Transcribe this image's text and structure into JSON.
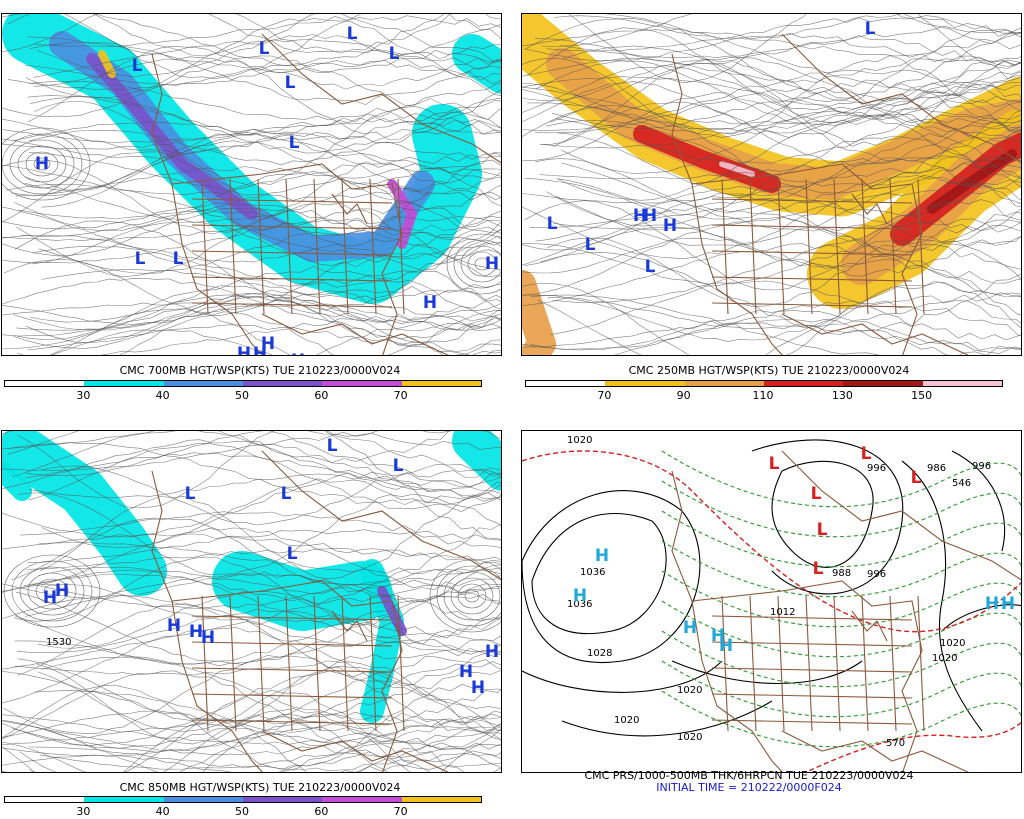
{
  "panels": {
    "p700": {
      "title": "CMC 700MB HGT/WSP(KTS) TUE 210223/0000V024",
      "legend_values": [
        "30",
        "40",
        "50",
        "60",
        "70"
      ],
      "legend_colors": [
        "#ffffff",
        "#00e5e5",
        "#4a90e2",
        "#7b52cc",
        "#c44cd8",
        "#f2c21b"
      ],
      "highs": [
        "H",
        "H",
        "H",
        "H",
        "H",
        "H",
        "H"
      ],
      "lows": [
        "L",
        "L",
        "L",
        "L",
        "L",
        "L",
        "L",
        "L"
      ]
    },
    "p250": {
      "title": "CMC 250MB HGT/WSP(KTS) TUE 210223/0000V024",
      "legend_values": [
        "70",
        "90",
        "110",
        "130",
        "150"
      ],
      "legend_colors": [
        "#ffffff",
        "#f2c21b",
        "#e8a04a",
        "#d42020",
        "#a01818",
        "#f4c2d4"
      ],
      "highs": [
        "H",
        "H",
        "H"
      ],
      "lows": [
        "L",
        "L",
        "L",
        "L"
      ]
    },
    "p850": {
      "title": "CMC 850MB HGT/WSP(KTS) TUE 210223/0000V024",
      "legend_values": [
        "30",
        "40",
        "50",
        "60",
        "70"
      ],
      "legend_colors": [
        "#ffffff",
        "#00e5e5",
        "#4a90e2",
        "#7b52cc",
        "#c44cd8",
        "#f2c21b"
      ],
      "highs": [
        "H",
        "H",
        "H",
        "H",
        "H",
        "H",
        "H",
        "H"
      ],
      "lows": [
        "L",
        "L",
        "L",
        "L",
        "L"
      ],
      "isobar_label": "1530"
    },
    "prs": {
      "title": "CMC PRS/1000-500MB THK/6HRPCN TUE 210223/0000V024",
      "subtitle": "INITIAL TIME = 210222/0000F024",
      "highs": [
        "H",
        "H",
        "H",
        "H",
        "H",
        "H",
        "H"
      ],
      "lows": [
        "L",
        "L",
        "L",
        "L",
        "L",
        "L"
      ],
      "isobar_labels": [
        "1020",
        "1036",
        "1036",
        "1028",
        "1020",
        "1020",
        "1020",
        "1020",
        "1012",
        "988",
        "996",
        "996",
        "986",
        "570",
        "546",
        "996",
        "1020"
      ]
    }
  }
}
